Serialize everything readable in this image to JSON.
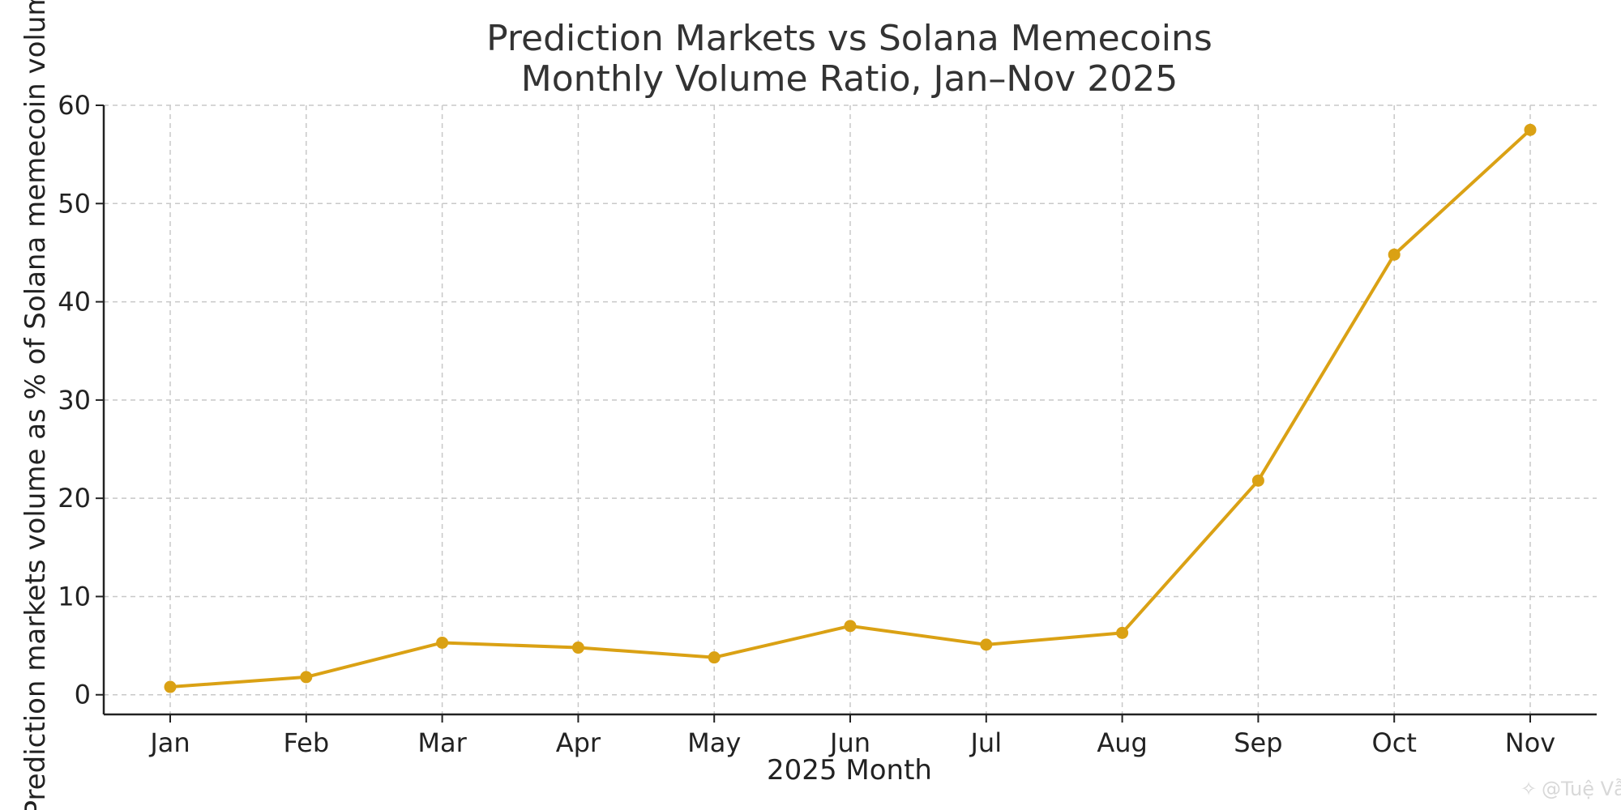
{
  "chart_data": {
    "type": "line",
    "title": "Prediction Markets vs Solana Memecoins",
    "subtitle": "Monthly Volume Ratio, Jan–Nov 2025",
    "xlabel": "2025 Month",
    "ylabel": "Prediction markets volume as % of Solana memecoin volume",
    "categories": [
      "Jan",
      "Feb",
      "Mar",
      "Apr",
      "May",
      "Jun",
      "Jul",
      "Aug",
      "Sep",
      "Oct",
      "Nov"
    ],
    "series": [
      {
        "values": [
          0.8,
          1.8,
          5.3,
          4.8,
          3.8,
          7.0,
          5.1,
          6.3,
          21.8,
          44.8,
          57.5
        ]
      }
    ],
    "ylim": [
      -2,
      60
    ],
    "yticks": [
      0,
      10,
      20,
      30,
      40,
      50,
      60
    ],
    "grid": true,
    "legend": false,
    "colors": {
      "line": "#DAA114",
      "grid": "#c8c8c8",
      "axis": "#222222",
      "title": "#333333"
    }
  },
  "watermark": "@Tuệ Vẫn"
}
